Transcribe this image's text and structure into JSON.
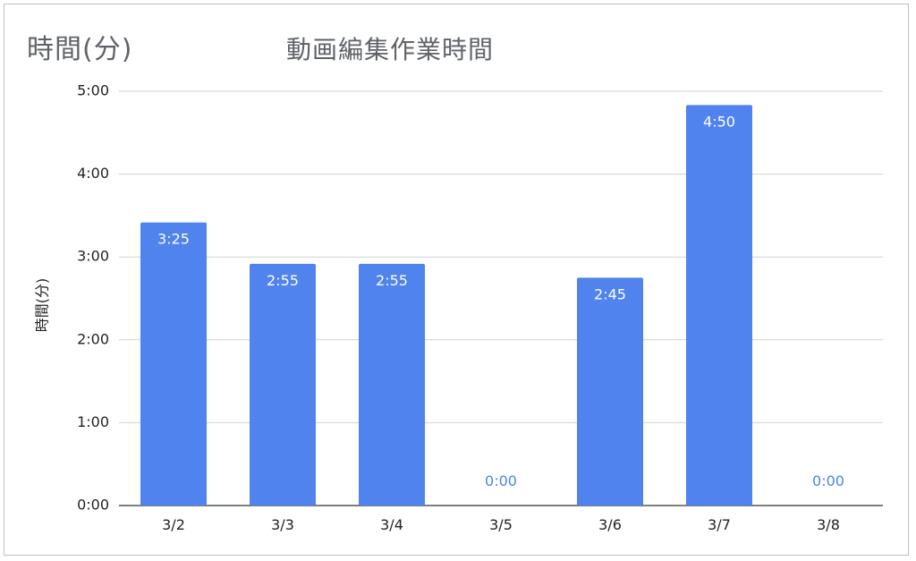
{
  "header": {
    "left_title": "時間(分)"
  },
  "chart_data": {
    "type": "bar",
    "title": "動画編集作業時間",
    "xlabel": "",
    "ylabel": "時間(分)",
    "categories": [
      "3/2",
      "3/3",
      "3/4",
      "3/5",
      "3/6",
      "3/7",
      "3/8"
    ],
    "values": [
      205,
      175,
      175,
      0,
      165,
      290,
      0
    ],
    "data_labels": [
      "3:25",
      "2:55",
      "2:55",
      "0:00",
      "2:45",
      "4:50",
      "0:00"
    ],
    "ylim": [
      0,
      300
    ],
    "yticks": [
      0,
      60,
      120,
      180,
      240,
      300
    ],
    "ytick_labels": [
      "0:00",
      "1:00",
      "2:00",
      "3:00",
      "4:00",
      "5:00"
    ],
    "grid": true,
    "legend": "none",
    "colors": {
      "bar": "#5083ee",
      "label_inside": "#ffffff",
      "label_zero": "#4a86e8",
      "grid": "#d0d0d0"
    }
  }
}
